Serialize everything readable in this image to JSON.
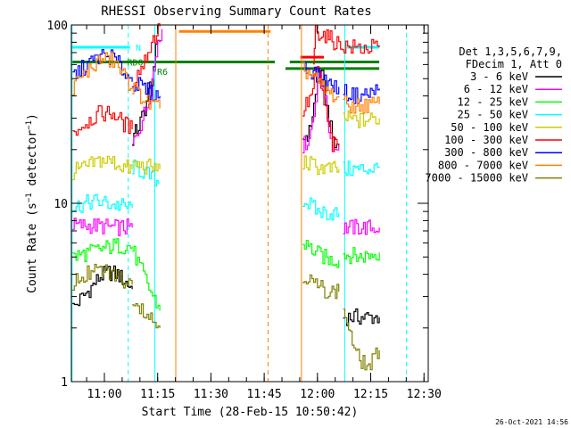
{
  "chart_data": {
    "type": "line",
    "title": "RHESSI Observing Summary Count Rates",
    "xlabel": "Start Time (28-Feb-15 10:50:42)",
    "ylabel": "Count Rate (s⁻¹ detector⁻¹)",
    "ylabel_parts": {
      "main": "Count Rate (s",
      "sup1": "−1",
      "mid": " detector",
      "sup2": "−1",
      "end": ")"
    },
    "yscale": "log",
    "ylim": [
      1,
      100
    ],
    "yticks": [
      "1",
      "10",
      "100"
    ],
    "xlim": [
      10.845,
      12.52
    ],
    "x_ticks": [
      {
        "t": 11.0,
        "label": "11:00"
      },
      {
        "t": 11.25,
        "label": "11:15"
      },
      {
        "t": 11.5,
        "label": "11:30"
      },
      {
        "t": 11.75,
        "label": "11:45"
      },
      {
        "t": 12.0,
        "label": "12:00"
      },
      {
        "t": 12.25,
        "label": "12:15"
      },
      {
        "t": 12.5,
        "label": "12:30"
      }
    ],
    "date_stamp": "26-Oct-2021 14:56",
    "legend_header": [
      "Det 1,3,5,6,7,9,",
      "FDecim 1, Att 0"
    ],
    "series": [
      {
        "name": "3 - 6 keV",
        "color": "#000000",
        "segments": [
          [
            [
              10.85,
              2.6
            ],
            [
              10.92,
              3.2
            ],
            [
              10.98,
              3.9
            ],
            [
              11.02,
              4.1
            ],
            [
              11.06,
              4.0
            ],
            [
              11.1,
              3.6
            ],
            [
              11.13,
              3.3
            ]
          ],
          [
            [
              11.13,
              23
            ],
            [
              11.16,
              27
            ],
            [
              11.19,
              34
            ],
            [
              11.22,
              50
            ],
            [
              11.24,
              70
            ],
            [
              11.26,
              80
            ]
          ],
          [
            [
              11.93,
              23
            ],
            [
              11.96,
              25
            ],
            [
              11.99,
              40
            ],
            [
              12.01,
              58
            ],
            [
              12.03,
              44
            ],
            [
              12.06,
              26
            ],
            [
              12.08,
              21
            ],
            [
              12.1,
              21
            ]
          ],
          [
            [
              12.12,
              2.3
            ],
            [
              12.18,
              2.3
            ],
            [
              12.24,
              2.3
            ],
            [
              12.29,
              2.3
            ]
          ]
        ]
      },
      {
        "name": "6 - 12 keV",
        "color": "#ff00ff",
        "segments": [
          [
            [
              10.85,
              7.5
            ],
            [
              10.95,
              7.5
            ],
            [
              11.05,
              7.3
            ],
            [
              11.13,
              7.3
            ]
          ],
          [
            [
              11.13,
              21
            ],
            [
              11.17,
              28
            ],
            [
              11.2,
              36
            ],
            [
              11.23,
              55
            ],
            [
              11.25,
              85
            ],
            [
              11.27,
              95
            ]
          ],
          [
            [
              11.93,
              21
            ],
            [
              11.96,
              23
            ],
            [
              11.99,
              38
            ],
            [
              12.01,
              55
            ],
            [
              12.03,
              42
            ],
            [
              12.06,
              23
            ],
            [
              12.08,
              20
            ],
            [
              12.1,
              21
            ]
          ],
          [
            [
              12.12,
              7.3
            ],
            [
              12.2,
              7.3
            ],
            [
              12.29,
              7.3
            ]
          ]
        ]
      },
      {
        "name": "12 - 25 keV",
        "color": "#00ff00",
        "segments": [
          [
            [
              10.85,
              5.0
            ],
            [
              10.95,
              5.4
            ],
            [
              11.05,
              5.8
            ],
            [
              11.13,
              5.7
            ]
          ],
          [
            [
              11.13,
              5.5
            ],
            [
              11.2,
              3.5
            ],
            [
              11.26,
              2.5
            ]
          ],
          [
            [
              11.93,
              6.0
            ],
            [
              12.0,
              5.2
            ],
            [
              12.06,
              4.8
            ],
            [
              12.1,
              4.8
            ]
          ],
          [
            [
              12.12,
              5.2
            ],
            [
              12.2,
              5.0
            ],
            [
              12.29,
              5.3
            ]
          ]
        ]
      },
      {
        "name": "25 - 50 keV",
        "color": "#00ffff",
        "segments": [
          [
            [
              10.85,
              9.5
            ],
            [
              10.95,
              10.3
            ],
            [
              11.05,
              9.8
            ],
            [
              11.13,
              9.4
            ]
          ],
          [
            [
              11.13,
              16
            ],
            [
              11.18,
              15
            ],
            [
              11.22,
              14
            ],
            [
              11.26,
              13
            ]
          ],
          [
            [
              11.93,
              10.5
            ],
            [
              12.0,
              9.0
            ],
            [
              12.06,
              8.8
            ],
            [
              12.1,
              8.8
            ]
          ],
          [
            [
              12.12,
              15.5
            ],
            [
              12.2,
              15.5
            ],
            [
              12.29,
              15.8
            ]
          ]
        ]
      },
      {
        "name": "50 - 100 keV",
        "color": "#cccc00",
        "segments": [
          [
            [
              10.85,
              15
            ],
            [
              10.92,
              16
            ],
            [
              10.98,
              17.5
            ],
            [
              11.04,
              17
            ],
            [
              11.09,
              16
            ],
            [
              11.13,
              15.5
            ]
          ],
          [
            [
              11.13,
              16.5
            ],
            [
              11.2,
              16
            ],
            [
              11.26,
              15.5
            ]
          ],
          [
            [
              11.93,
              17
            ],
            [
              12.0,
              16
            ],
            [
              12.06,
              15.5
            ],
            [
              12.1,
              15.5
            ]
          ],
          [
            [
              12.12,
              30
            ],
            [
              12.2,
              29
            ],
            [
              12.29,
              30
            ]
          ]
        ]
      },
      {
        "name": "100 - 300 keV",
        "color": "#ff0000",
        "segments": [
          [
            [
              10.85,
              25
            ],
            [
              10.92,
              29
            ],
            [
              10.98,
              32
            ],
            [
              11.04,
              32
            ],
            [
              11.09,
              28
            ],
            [
              11.13,
              26
            ]
          ],
          [
            [
              11.13,
              48
            ],
            [
              11.18,
              60
            ],
            [
              11.22,
              80
            ],
            [
              11.26,
              98
            ]
          ],
          [
            [
              11.93,
              33
            ],
            [
              11.97,
              40
            ],
            [
              12.0,
              58
            ],
            [
              12.03,
              36
            ],
            [
              12.07,
              21
            ],
            [
              12.1,
              21
            ]
          ],
          [
            [
              11.98,
              62
            ],
            [
              11.99,
              92
            ],
            [
              12.02,
              90
            ],
            [
              12.06,
              83
            ],
            [
              12.1,
              78
            ],
            [
              12.15,
              75
            ],
            [
              12.22,
              74
            ],
            [
              12.29,
              75
            ]
          ]
        ]
      },
      {
        "name": "300 - 800 keV",
        "color": "#0000ff",
        "segments": [
          [
            [
              10.85,
              52
            ],
            [
              10.92,
              60
            ],
            [
              10.98,
              67
            ],
            [
              11.04,
              66
            ],
            [
              11.09,
              55
            ],
            [
              11.13,
              48
            ]
          ],
          [
            [
              11.13,
              48
            ],
            [
              11.17,
              45
            ],
            [
              11.21,
              42
            ],
            [
              11.26,
              40
            ]
          ],
          [
            [
              11.93,
              58
            ],
            [
              11.98,
              55
            ],
            [
              12.01,
              50
            ],
            [
              12.05,
              47
            ],
            [
              12.08,
              45
            ],
            [
              12.1,
              45
            ]
          ],
          [
            [
              12.12,
              42
            ],
            [
              12.18,
              40
            ],
            [
              12.24,
              41
            ],
            [
              12.29,
              44
            ]
          ]
        ]
      },
      {
        "name": "800 - 7000 keV",
        "color": "#ff8000",
        "segments": [
          [
            [
              10.85,
              45
            ],
            [
              10.92,
              55
            ],
            [
              10.98,
              64
            ],
            [
              11.04,
              63
            ],
            [
              11.09,
              52
            ],
            [
              11.13,
              45
            ]
          ],
          [
            [
              11.13,
              45
            ],
            [
              11.17,
              40
            ],
            [
              11.21,
              36
            ],
            [
              11.26,
              34
            ]
          ],
          [
            [
              11.93,
              56
            ],
            [
              11.98,
              52
            ],
            [
              12.01,
              46
            ],
            [
              12.05,
              42
            ],
            [
              12.08,
              40
            ],
            [
              12.1,
              40
            ]
          ],
          [
            [
              12.12,
              36
            ],
            [
              12.18,
              35
            ],
            [
              12.24,
              35.5
            ],
            [
              12.29,
              36
            ]
          ]
        ]
      },
      {
        "name": "7000 - 15000 keV",
        "color": "#808000",
        "segments": [
          [
            [
              10.85,
              3.6
            ],
            [
              10.92,
              4.0
            ],
            [
              10.98,
              4.2
            ],
            [
              11.04,
              4.0
            ],
            [
              11.09,
              3.7
            ],
            [
              11.13,
              3.5
            ]
          ],
          [
            [
              11.13,
              3.0
            ],
            [
              11.2,
              2.4
            ],
            [
              11.26,
              2.0
            ]
          ],
          [
            [
              11.93,
              4.0
            ],
            [
              12.0,
              3.4
            ],
            [
              12.06,
              3.2
            ],
            [
              12.1,
              3.2
            ]
          ],
          [
            [
              12.12,
              2.6
            ],
            [
              12.18,
              1.4
            ],
            [
              12.24,
              1.2
            ],
            [
              12.29,
              1.5
            ]
          ]
        ]
      }
    ],
    "annotations": [
      {
        "text": "N",
        "color": "#00ffff",
        "t": 11.13,
        "y": 75
      },
      {
        "text": "RD0",
        "color": "#008000",
        "t": 11.09,
        "y": 62
      },
      {
        "text": "R6",
        "color": "#008000",
        "t": 11.23,
        "y": 55
      }
    ],
    "flag_bars": [
      {
        "color": "#00ffff",
        "t0": 10.85,
        "t1": 11.12,
        "y": 75
      },
      {
        "color": "#00ffff",
        "t0": 12.14,
        "t1": 12.29,
        "y": 75
      },
      {
        "color": "#008000",
        "t0": 10.85,
        "t1": 11.8,
        "y": 62
      },
      {
        "color": "#008000",
        "t0": 11.87,
        "t1": 12.29,
        "y": 62
      },
      {
        "color": "#008000",
        "t0": 11.85,
        "t1": 12.29,
        "y": 57
      },
      {
        "color": "#ff8000",
        "t0": 11.35,
        "t1": 11.78,
        "y": 92
      },
      {
        "color": "#ff0000",
        "t0": 11.92,
        "t1": 12.03,
        "y": 66
      }
    ],
    "vertical_markers": [
      {
        "color": "#00ffff",
        "style": "solid",
        "t": 10.848
      },
      {
        "color": "#00ffff",
        "style": "dashed",
        "t": 11.112
      },
      {
        "color": "#00ffff",
        "style": "solid",
        "t": 11.237
      },
      {
        "color": "#ff8000",
        "style": "solid",
        "t": 11.335
      },
      {
        "color": "#ff8000",
        "style": "dashed",
        "t": 11.768
      },
      {
        "color": "#ff8000",
        "style": "solid",
        "t": 11.925
      },
      {
        "color": "#00ffff",
        "style": "solid",
        "t": 12.128
      },
      {
        "color": "#00ffff",
        "style": "dashed",
        "t": 12.418
      }
    ]
  }
}
